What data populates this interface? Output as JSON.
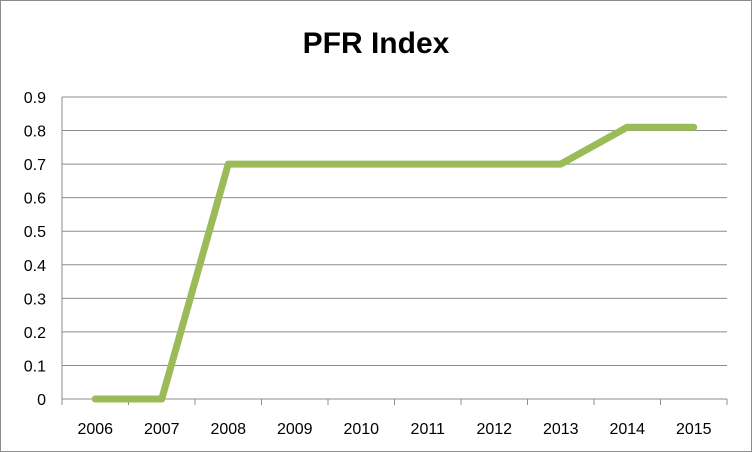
{
  "chart_data": {
    "type": "line",
    "title": "PFR Index",
    "xlabel": "",
    "ylabel": "",
    "x": [
      "2006",
      "2007",
      "2008",
      "2009",
      "2010",
      "2011",
      "2012",
      "2013",
      "2014",
      "2015"
    ],
    "series": [
      {
        "values": [
          0,
          0,
          0.7,
          0.7,
          0.7,
          0.7,
          0.7,
          0.7,
          0.81,
          0.81
        ],
        "color": "#9BBB59"
      }
    ],
    "ylim": [
      0,
      0.9
    ],
    "yticks": [
      "0",
      "0.1",
      "0.2",
      "0.3",
      "0.4",
      "0.5",
      "0.6",
      "0.7",
      "0.8",
      "0.9"
    ],
    "grid": true,
    "legend": "none"
  }
}
